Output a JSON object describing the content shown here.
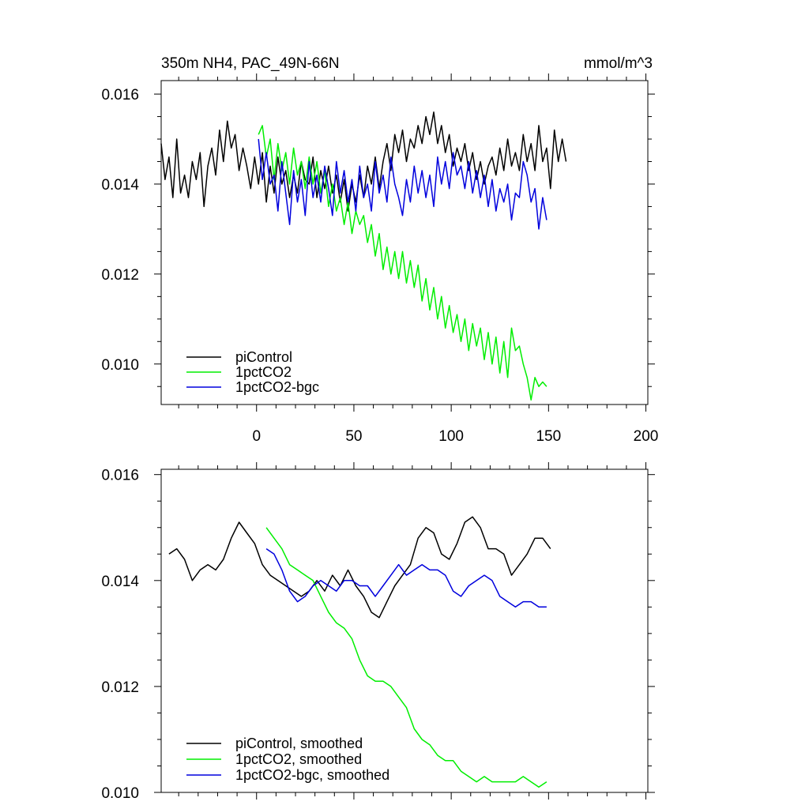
{
  "chart_data": [
    {
      "type": "line",
      "title": "350m NH4, PAC_49N-66N",
      "units": "mmol/m^3",
      "xlim": [
        -49,
        201
      ],
      "ylim": [
        0.0091,
        0.0163
      ],
      "xticks": [
        0,
        50,
        100,
        150,
        200
      ],
      "yticks": [
        0.01,
        0.012,
        0.014,
        0.016
      ],
      "ytick_labels": [
        "0.010",
        "0.012",
        "0.014",
        "0.016"
      ],
      "xtick_labels": [
        "0",
        "50",
        "100",
        "150",
        "200"
      ],
      "show_x_labels": true,
      "legend_position": "bottom-left",
      "series": [
        {
          "name": "piControl",
          "color": "#000000",
          "x_start": -49,
          "x_step": 2,
          "values": [
            0.0149,
            0.0141,
            0.0146,
            0.0137,
            0.015,
            0.0138,
            0.0142,
            0.0137,
            0.0145,
            0.0141,
            0.0147,
            0.0135,
            0.0144,
            0.0148,
            0.0142,
            0.0152,
            0.0145,
            0.0154,
            0.0148,
            0.0151,
            0.0143,
            0.0148,
            0.0144,
            0.0139,
            0.0146,
            0.014,
            0.0147,
            0.0136,
            0.0144,
            0.0138,
            0.0146,
            0.014,
            0.0143,
            0.0137,
            0.0142,
            0.0138,
            0.0145,
            0.0141,
            0.014,
            0.0146,
            0.0137,
            0.0143,
            0.0139,
            0.0144,
            0.0138,
            0.0142,
            0.0136,
            0.0141,
            0.0134,
            0.014,
            0.0136,
            0.0142,
            0.0137,
            0.0144,
            0.014,
            0.0146,
            0.0139,
            0.0145,
            0.0149,
            0.0143,
            0.0151,
            0.0147,
            0.0152,
            0.0145,
            0.015,
            0.0148,
            0.0153,
            0.0149,
            0.0155,
            0.0151,
            0.0156,
            0.0149,
            0.0153,
            0.0147,
            0.0151,
            0.0144,
            0.0148,
            0.0145,
            0.0149,
            0.0143,
            0.0147,
            0.0141,
            0.0145,
            0.014,
            0.0144,
            0.0146,
            0.0142,
            0.0148,
            0.0143,
            0.015,
            0.0144,
            0.0147,
            0.0143,
            0.0151,
            0.0145,
            0.0149,
            0.0143,
            0.0153,
            0.0145,
            0.0148,
            0.0139,
            0.0152,
            0.0145,
            0.015,
            0.0145
          ]
        },
        {
          "name": "1pctCO2",
          "color": "#00ee00",
          "x_start": 1,
          "x_step": 2,
          "values": [
            0.0151,
            0.0153,
            0.0146,
            0.015,
            0.0141,
            0.0149,
            0.0143,
            0.0147,
            0.014,
            0.0148,
            0.0142,
            0.0145,
            0.0139,
            0.0146,
            0.014,
            0.0145,
            0.0138,
            0.0143,
            0.0135,
            0.014,
            0.0134,
            0.0137,
            0.0131,
            0.0136,
            0.0129,
            0.0134,
            0.0131,
            0.0133,
            0.0127,
            0.0131,
            0.0124,
            0.0129,
            0.0121,
            0.0126,
            0.012,
            0.0125,
            0.0119,
            0.0125,
            0.0118,
            0.0123,
            0.0117,
            0.0122,
            0.0114,
            0.0119,
            0.0112,
            0.0117,
            0.011,
            0.0115,
            0.0108,
            0.0113,
            0.0107,
            0.0111,
            0.0105,
            0.011,
            0.0103,
            0.0109,
            0.0104,
            0.0108,
            0.0101,
            0.0107,
            0.01,
            0.0106,
            0.0098,
            0.0105,
            0.0097,
            0.0108,
            0.0103,
            0.0104,
            0.01,
            0.0097,
            0.0092,
            0.0097,
            0.0095,
            0.0096,
            0.0095
          ]
        },
        {
          "name": "1pctCO2-bgc",
          "color": "#0000dd",
          "x_start": 1,
          "x_step": 2,
          "values": [
            0.015,
            0.0141,
            0.0147,
            0.014,
            0.0142,
            0.0134,
            0.0145,
            0.0138,
            0.0131,
            0.0143,
            0.0136,
            0.0141,
            0.0133,
            0.0145,
            0.0137,
            0.0142,
            0.0136,
            0.0144,
            0.0139,
            0.0133,
            0.0145,
            0.0138,
            0.0143,
            0.0136,
            0.0141,
            0.0134,
            0.0144,
            0.0137,
            0.014,
            0.0134,
            0.0145,
            0.0138,
            0.0142,
            0.0136,
            0.0146,
            0.014,
            0.0137,
            0.0133,
            0.0141,
            0.0136,
            0.0144,
            0.0138,
            0.0143,
            0.0137,
            0.0142,
            0.0135,
            0.0146,
            0.014,
            0.0145,
            0.0139,
            0.0147,
            0.0142,
            0.0144,
            0.0139,
            0.0145,
            0.0138,
            0.0143,
            0.0137,
            0.0142,
            0.0135,
            0.0141,
            0.0134,
            0.0139,
            0.0136,
            0.014,
            0.0132,
            0.0138,
            0.0137,
            0.0145,
            0.0142,
            0.0136,
            0.0139,
            0.013,
            0.0137,
            0.0132
          ]
        }
      ]
    },
    {
      "type": "line",
      "title": "",
      "units": "",
      "xlim": [
        -49,
        201
      ],
      "ylim": [
        0.01,
        0.0161
      ],
      "xticks": [
        0,
        50,
        100,
        150,
        200
      ],
      "yticks": [
        0.01,
        0.012,
        0.014,
        0.016
      ],
      "ytick_labels": [
        "0.010",
        "0.012",
        "0.014",
        "0.016"
      ],
      "xtick_labels": [],
      "show_x_labels": false,
      "legend_position": "bottom-left",
      "series": [
        {
          "name": "piControl, smoothed",
          "color": "#000000",
          "x_start": -45,
          "x_step": 4,
          "values": [
            0.0145,
            0.0146,
            0.0144,
            0.014,
            0.0142,
            0.0143,
            0.0142,
            0.0144,
            0.0148,
            0.0151,
            0.0149,
            0.0147,
            0.0143,
            0.0141,
            0.014,
            0.0139,
            0.0138,
            0.0137,
            0.0138,
            0.014,
            0.0138,
            0.0141,
            0.0139,
            0.0142,
            0.0139,
            0.0137,
            0.0134,
            0.0133,
            0.0136,
            0.0139,
            0.0141,
            0.0143,
            0.0148,
            0.015,
            0.0149,
            0.0145,
            0.0144,
            0.0147,
            0.0151,
            0.0152,
            0.015,
            0.0146,
            0.0146,
            0.0145,
            0.0141,
            0.0143,
            0.0145,
            0.0148,
            0.0148,
            0.0146
          ]
        },
        {
          "name": "1pctCO2, smoothed",
          "color": "#00ee00",
          "x_start": 5,
          "x_step": 4,
          "values": [
            0.015,
            0.0148,
            0.0146,
            0.0143,
            0.0142,
            0.0141,
            0.014,
            0.0137,
            0.0134,
            0.0132,
            0.0131,
            0.0129,
            0.0125,
            0.0122,
            0.0121,
            0.0121,
            0.012,
            0.0118,
            0.0116,
            0.0112,
            0.011,
            0.0109,
            0.0107,
            0.0106,
            0.0106,
            0.0104,
            0.0103,
            0.0102,
            0.0103,
            0.0102,
            0.0102,
            0.0102,
            0.0102,
            0.0103,
            0.0102,
            0.0101,
            0.0102
          ]
        },
        {
          "name": "1pctCO2-bgc, smoothed",
          "color": "#0000dd",
          "x_start": 5,
          "x_step": 4,
          "values": [
            0.0146,
            0.0145,
            0.0142,
            0.0138,
            0.0136,
            0.0137,
            0.0139,
            0.014,
            0.0139,
            0.0138,
            0.014,
            0.014,
            0.0139,
            0.0139,
            0.0137,
            0.0139,
            0.0141,
            0.0143,
            0.0141,
            0.0142,
            0.0143,
            0.0142,
            0.0142,
            0.0141,
            0.0138,
            0.0137,
            0.0139,
            0.014,
            0.0141,
            0.014,
            0.0137,
            0.0136,
            0.0135,
            0.0136,
            0.0136,
            0.0135,
            0.0135
          ]
        }
      ]
    }
  ]
}
